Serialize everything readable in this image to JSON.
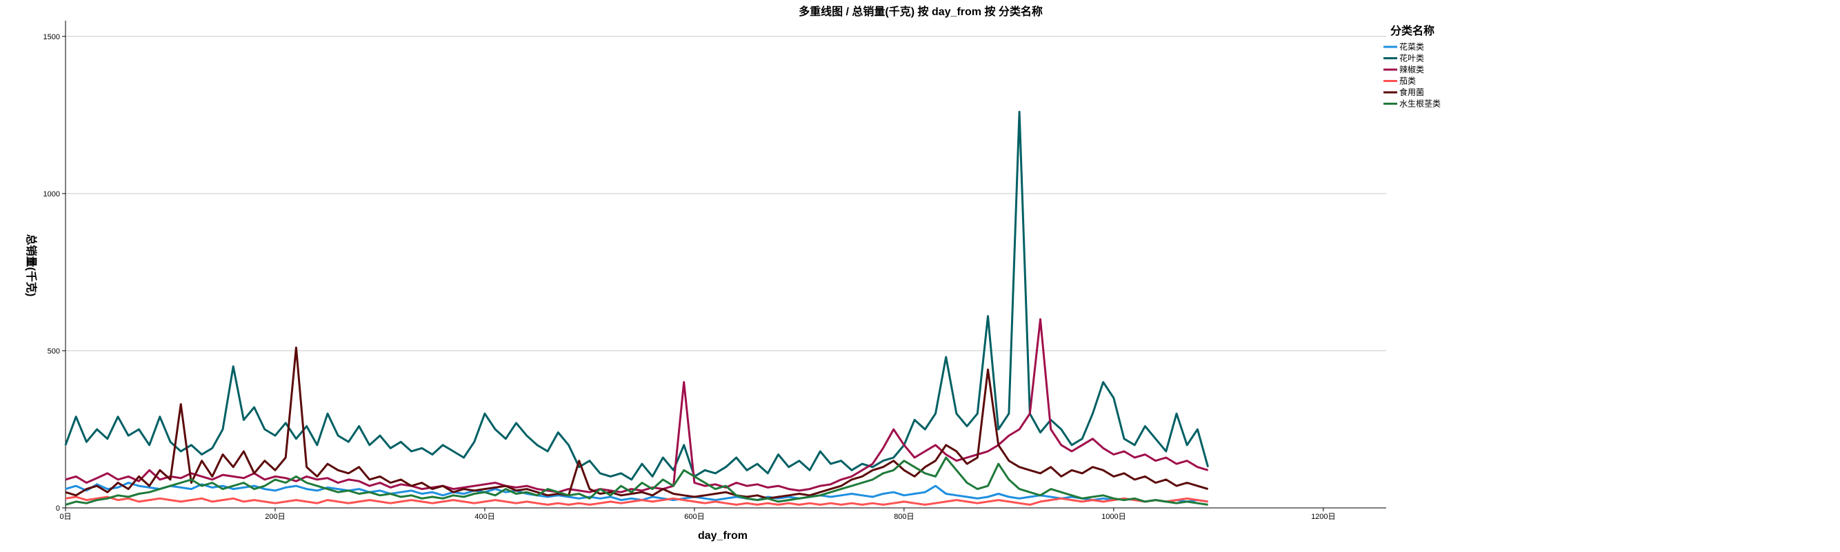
{
  "chart_data": {
    "type": "line",
    "title": "多重线图 / 总销量(千克) 按 day_from 按 分类名称",
    "xlabel": "day_from",
    "ylabel": "总销量(千克)",
    "xlim": [
      0,
      1260
    ],
    "ylim": [
      0,
      1550
    ],
    "x_ticks": [
      0,
      200,
      400,
      600,
      800,
      1000,
      1200
    ],
    "x_tick_labels": [
      "0日",
      "200日",
      "400日",
      "600日",
      "800日",
      "1000日",
      "1200日"
    ],
    "y_ticks": [
      0,
      500,
      1000,
      1500
    ],
    "y_tick_labels": [
      "0",
      "500",
      "1000",
      "1500"
    ],
    "grid": "horizontal",
    "legend": {
      "title": "分类名称",
      "position": "top-right"
    },
    "x": [
      0,
      10,
      20,
      30,
      40,
      50,
      60,
      70,
      80,
      90,
      100,
      110,
      120,
      130,
      140,
      150,
      160,
      170,
      180,
      190,
      200,
      210,
      220,
      230,
      240,
      250,
      260,
      270,
      280,
      290,
      300,
      310,
      320,
      330,
      340,
      350,
      360,
      370,
      380,
      390,
      400,
      410,
      420,
      430,
      440,
      450,
      460,
      470,
      480,
      490,
      500,
      510,
      520,
      530,
      540,
      550,
      560,
      570,
      580,
      590,
      600,
      610,
      620,
      630,
      640,
      650,
      660,
      670,
      680,
      690,
      700,
      710,
      720,
      730,
      740,
      750,
      760,
      770,
      780,
      790,
      800,
      810,
      820,
      830,
      840,
      850,
      860,
      870,
      880,
      890,
      900,
      910,
      920,
      930,
      940,
      950,
      960,
      970,
      980,
      990,
      1000,
      1010,
      1020,
      1030,
      1040,
      1050,
      1060,
      1070,
      1080,
      1090
    ],
    "series": [
      {
        "name": "花菜类",
        "color": "#1f8fe0",
        "values": [
          60,
          70,
          55,
          75,
          60,
          65,
          80,
          70,
          65,
          60,
          70,
          65,
          60,
          75,
          65,
          70,
          60,
          65,
          70,
          60,
          55,
          65,
          70,
          60,
          55,
          65,
          60,
          55,
          60,
          50,
          55,
          45,
          50,
          55,
          45,
          50,
          40,
          50,
          45,
          55,
          50,
          60,
          50,
          55,
          45,
          40,
          35,
          40,
          35,
          30,
          35,
          30,
          35,
          25,
          30,
          25,
          35,
          30,
          25,
          30,
          35,
          30,
          25,
          30,
          35,
          30,
          25,
          35,
          30,
          35,
          30,
          35,
          40,
          35,
          40,
          45,
          40,
          35,
          45,
          50,
          40,
          45,
          50,
          70,
          45,
          40,
          35,
          30,
          35,
          45,
          35,
          30,
          35,
          40,
          35,
          30,
          35,
          30,
          25,
          30,
          25,
          30,
          25,
          20,
          25,
          20,
          25,
          20,
          25,
          20
        ]
      },
      {
        "name": "花叶类",
        "color": "#006064",
        "values": [
          200,
          290,
          210,
          250,
          220,
          290,
          230,
          250,
          200,
          290,
          210,
          180,
          200,
          170,
          190,
          250,
          450,
          280,
          320,
          250,
          230,
          270,
          220,
          260,
          200,
          300,
          230,
          210,
          260,
          200,
          230,
          190,
          210,
          180,
          190,
          170,
          200,
          180,
          160,
          210,
          300,
          250,
          220,
          270,
          230,
          200,
          180,
          240,
          200,
          130,
          150,
          110,
          100,
          110,
          90,
          140,
          100,
          160,
          120,
          200,
          100,
          120,
          110,
          130,
          160,
          120,
          140,
          110,
          170,
          130,
          150,
          120,
          180,
          140,
          150,
          120,
          140,
          130,
          150,
          160,
          200,
          280,
          250,
          300,
          480,
          300,
          260,
          300,
          610,
          250,
          300,
          1260,
          300,
          240,
          280,
          250,
          200,
          220,
          300,
          400,
          350,
          220,
          200,
          260,
          220,
          180,
          300,
          200,
          250,
          130
        ]
      },
      {
        "name": "辣椒类",
        "color": "#a0104c",
        "values": [
          90,
          100,
          80,
          95,
          110,
          90,
          100,
          85,
          120,
          90,
          100,
          95,
          110,
          100,
          90,
          105,
          100,
          95,
          110,
          90,
          100,
          95,
          85,
          100,
          90,
          95,
          80,
          90,
          85,
          70,
          80,
          65,
          75,
          70,
          60,
          65,
          70,
          60,
          65,
          70,
          75,
          80,
          70,
          65,
          70,
          60,
          55,
          50,
          60,
          55,
          50,
          60,
          55,
          50,
          60,
          55,
          65,
          60,
          70,
          400,
          80,
          70,
          75,
          65,
          80,
          70,
          75,
          65,
          70,
          60,
          55,
          60,
          70,
          75,
          90,
          100,
          120,
          140,
          190,
          250,
          200,
          160,
          180,
          200,
          170,
          150,
          160,
          170,
          180,
          200,
          230,
          250,
          300,
          600,
          250,
          200,
          180,
          200,
          220,
          190,
          170,
          180,
          160,
          170,
          150,
          160,
          140,
          150,
          130,
          120
        ]
      },
      {
        "name": "茄类",
        "color": "#ff5252",
        "values": [
          30,
          35,
          25,
          30,
          35,
          25,
          30,
          20,
          25,
          30,
          25,
          20,
          25,
          30,
          20,
          25,
          30,
          20,
          25,
          20,
          15,
          20,
          25,
          20,
          15,
          25,
          20,
          15,
          20,
          25,
          20,
          15,
          20,
          25,
          20,
          15,
          20,
          25,
          20,
          15,
          20,
          25,
          20,
          15,
          20,
          15,
          10,
          15,
          10,
          15,
          10,
          15,
          20,
          15,
          20,
          25,
          20,
          25,
          30,
          25,
          20,
          15,
          20,
          15,
          10,
          15,
          10,
          15,
          10,
          15,
          10,
          15,
          10,
          15,
          10,
          15,
          10,
          15,
          10,
          15,
          20,
          15,
          10,
          15,
          20,
          25,
          20,
          15,
          20,
          25,
          20,
          15,
          10,
          20,
          25,
          30,
          25,
          20,
          25,
          20,
          25,
          30,
          25,
          20,
          25,
          20,
          25,
          30,
          25,
          20
        ]
      },
      {
        "name": "食用菌",
        "color": "#5c0a0a",
        "values": [
          50,
          40,
          60,
          70,
          50,
          80,
          60,
          100,
          70,
          120,
          90,
          330,
          80,
          150,
          100,
          170,
          130,
          180,
          110,
          150,
          120,
          160,
          510,
          130,
          100,
          140,
          120,
          110,
          130,
          90,
          100,
          80,
          90,
          70,
          80,
          60,
          70,
          50,
          60,
          55,
          60,
          65,
          70,
          55,
          60,
          50,
          40,
          45,
          40,
          150,
          60,
          45,
          50,
          40,
          45,
          50,
          40,
          60,
          45,
          40,
          35,
          40,
          45,
          50,
          40,
          35,
          40,
          30,
          35,
          40,
          45,
          40,
          50,
          60,
          70,
          90,
          100,
          120,
          130,
          150,
          120,
          100,
          130,
          150,
          200,
          180,
          140,
          160,
          440,
          200,
          150,
          130,
          120,
          110,
          130,
          100,
          120,
          110,
          130,
          120,
          100,
          110,
          90,
          100,
          80,
          90,
          70,
          80,
          70,
          60
        ]
      },
      {
        "name": "水生根茎类",
        "color": "#1f7a3a",
        "values": [
          10,
          20,
          15,
          25,
          30,
          40,
          35,
          45,
          50,
          60,
          70,
          80,
          90,
          70,
          80,
          60,
          70,
          80,
          60,
          70,
          90,
          80,
          100,
          80,
          70,
          60,
          50,
          55,
          45,
          50,
          40,
          45,
          35,
          40,
          30,
          35,
          30,
          40,
          35,
          45,
          50,
          40,
          60,
          45,
          50,
          40,
          60,
          50,
          40,
          45,
          30,
          60,
          40,
          70,
          50,
          80,
          60,
          90,
          70,
          120,
          100,
          80,
          60,
          70,
          40,
          30,
          25,
          30,
          20,
          25,
          30,
          35,
          40,
          50,
          60,
          70,
          80,
          90,
          110,
          120,
          150,
          130,
          110,
          100,
          160,
          120,
          80,
          60,
          70,
          140,
          90,
          60,
          50,
          40,
          60,
          50,
          40,
          30,
          35,
          40,
          30,
          25,
          30,
          20,
          25,
          20,
          15,
          20,
          15,
          10
        ]
      }
    ]
  }
}
